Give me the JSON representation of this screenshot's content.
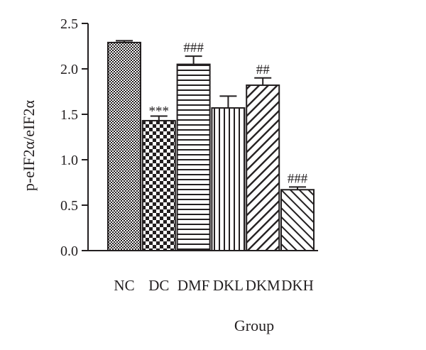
{
  "chart_data": {
    "type": "bar",
    "title": "",
    "xlabel": "Group",
    "ylabel": "p-eIF2α/eIF2α",
    "ylim": [
      0,
      2.5
    ],
    "yticks": [
      0.0,
      0.5,
      1.0,
      1.5,
      2.0,
      2.5
    ],
    "ytick_labels": [
      "0.0",
      "0.5",
      "1.0",
      "1.5",
      "2.0",
      "2.5"
    ],
    "categories": [
      "NC",
      "DC",
      "DMF",
      "DKL",
      "DKM",
      "DKH"
    ],
    "values": [
      2.29,
      1.43,
      2.05,
      1.57,
      1.82,
      0.67
    ],
    "errors": [
      0.02,
      0.05,
      0.09,
      0.13,
      0.08,
      0.03
    ],
    "annotations": [
      "",
      "***",
      "###",
      "",
      "##",
      "###"
    ],
    "patterns": [
      "crosshatch",
      "checker",
      "horizontal",
      "vertical",
      "diagonal-up",
      "diagonal-down"
    ],
    "grid": false,
    "legend": "none",
    "colors": {
      "ink": "#231f20",
      "background": "#ffffff"
    }
  }
}
